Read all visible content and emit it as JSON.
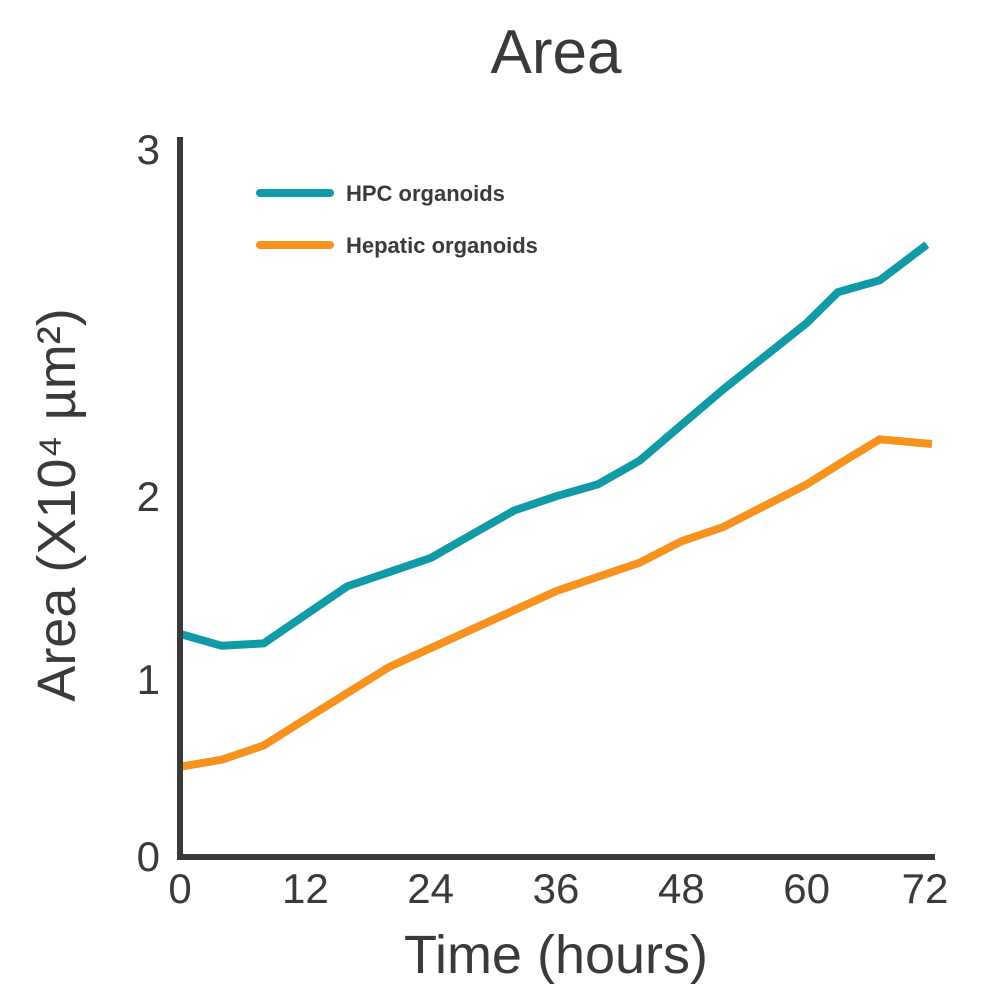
{
  "chart_data": {
    "type": "line",
    "title": "Area",
    "xlabel": "Time (hours)",
    "ylabel": "Area (X10⁴ µm²)",
    "xlim": [
      0,
      72
    ],
    "ylim": [
      0,
      3
    ],
    "x_ticks": [
      "0",
      "12",
      "24",
      "36",
      "48",
      "60",
      "72"
    ],
    "y_ticks": [
      "0",
      "1",
      "2",
      "3"
    ],
    "grid": false,
    "legend_position": "top-left",
    "series": [
      {
        "name": "HPC organoids",
        "color": "#0f9aa6",
        "x": [
          0,
          4,
          8,
          12,
          16,
          20,
          24,
          28,
          32,
          36,
          40,
          44,
          48,
          52,
          56,
          60,
          63,
          67,
          71.5
        ],
        "y": [
          0.94,
          0.89,
          0.9,
          1.02,
          1.14,
          1.2,
          1.26,
          1.36,
          1.46,
          1.52,
          1.57,
          1.67,
          1.82,
          1.97,
          2.11,
          2.25,
          2.38,
          2.43,
          2.58
        ]
      },
      {
        "name": "Hepatic organoids",
        "color": "#f7921e",
        "x": [
          0,
          4,
          8,
          12,
          16,
          20,
          24,
          28,
          32,
          36,
          40,
          44,
          48,
          52,
          56,
          60,
          64,
          67,
          72
        ],
        "y": [
          0.38,
          0.41,
          0.47,
          0.58,
          0.69,
          0.8,
          0.88,
          0.96,
          1.04,
          1.12,
          1.18,
          1.24,
          1.33,
          1.39,
          1.48,
          1.57,
          1.68,
          1.76,
          1.74
        ]
      }
    ]
  }
}
